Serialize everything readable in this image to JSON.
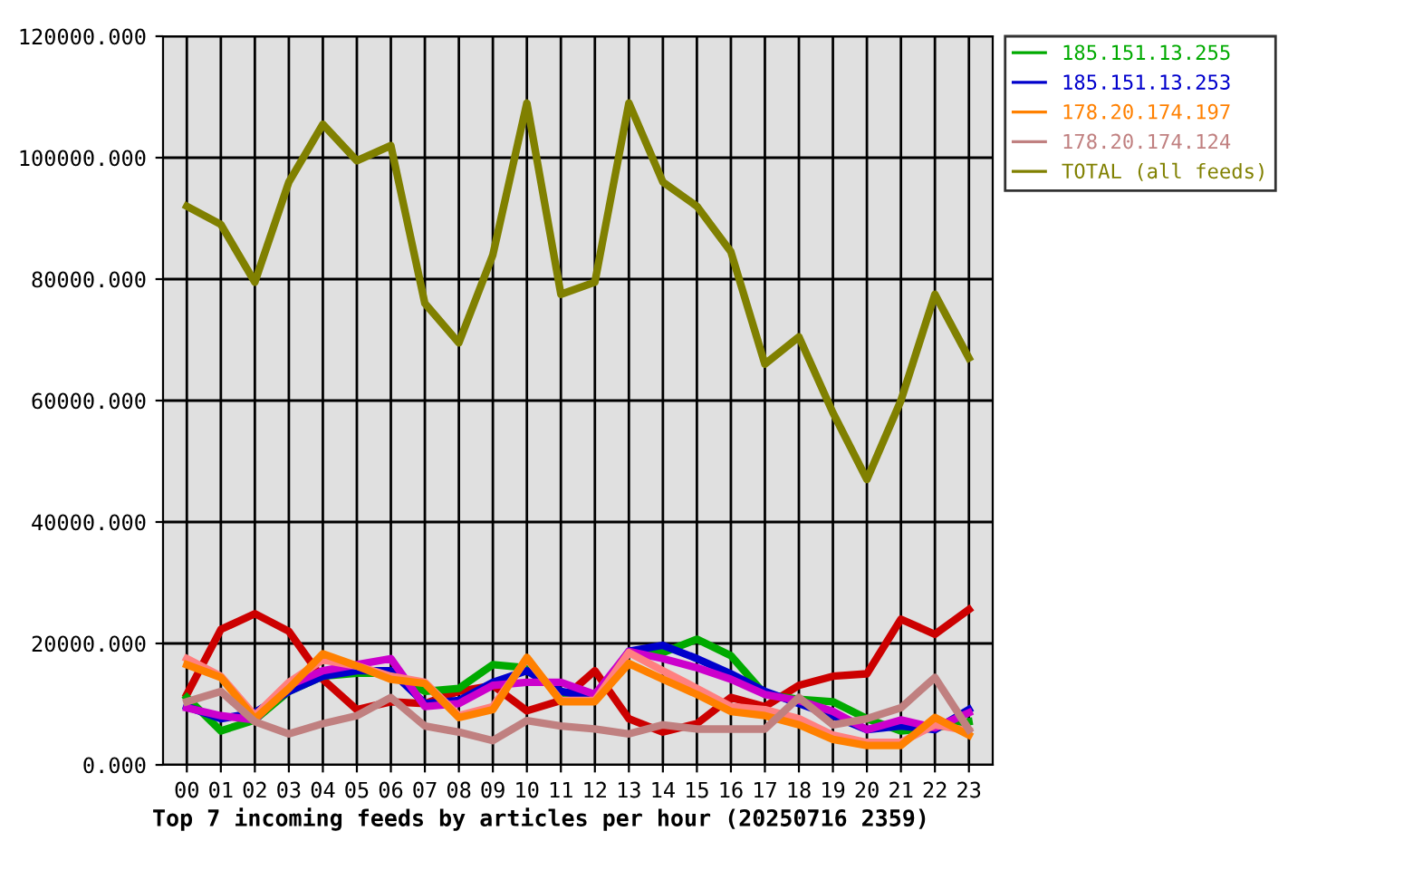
{
  "chart_data": {
    "type": "line",
    "title": "Top 7 incoming feeds by articles per hour (20250716 2359)",
    "categories": [
      "00",
      "01",
      "02",
      "03",
      "04",
      "05",
      "06",
      "07",
      "08",
      "09",
      "10",
      "11",
      "12",
      "13",
      "14",
      "15",
      "16",
      "17",
      "18",
      "19",
      "20",
      "21",
      "22",
      "23"
    ],
    "series": [
      {
        "color": "#cc0000",
        "values": [
          11600,
          22300,
          24900,
          22000,
          14100,
          9100,
          10400,
          10100,
          12100,
          13100,
          8900,
          10600,
          15500,
          7600,
          5400,
          6800,
          11100,
          9600,
          13100,
          14600,
          15000,
          24000,
          21500,
          25600
        ]
      },
      {
        "name": "185.151.13.255",
        "color": "#00aa00",
        "values": [
          11100,
          5600,
          7400,
          12100,
          14600,
          15100,
          15100,
          12100,
          12600,
          16500,
          16000,
          11600,
          11100,
          18500,
          18500,
          20700,
          18000,
          11600,
          10800,
          10400,
          7600,
          5600,
          6100,
          7100
        ]
      },
      {
        "name": "185.151.13.253",
        "color": "#0000cc",
        "values": [
          9600,
          7600,
          8600,
          12100,
          14600,
          15500,
          15500,
          10100,
          10600,
          13600,
          15500,
          12100,
          11100,
          18700,
          19700,
          17500,
          15000,
          12100,
          10100,
          8100,
          5800,
          6400,
          5800,
          9100
        ]
      },
      {
        "color": "#cc00cc",
        "values": [
          9400,
          8100,
          7400,
          13100,
          15500,
          16500,
          17500,
          9600,
          10100,
          13100,
          13600,
          13600,
          11600,
          18700,
          17500,
          16000,
          14100,
          11600,
          10600,
          8800,
          5800,
          7400,
          6100,
          8600
        ]
      },
      {
        "color": "#ff8080",
        "values": [
          17500,
          14600,
          8100,
          13600,
          17300,
          16300,
          14600,
          13600,
          8100,
          9600,
          17500,
          10600,
          10600,
          18500,
          15500,
          12600,
          9600,
          9100,
          7600,
          4900,
          3700,
          3700,
          6600,
          5600
        ]
      },
      {
        "name": "178.20.174.197",
        "color": "#ff8000",
        "values": [
          16500,
          14400,
          7600,
          12600,
          18300,
          16300,
          14100,
          13400,
          7800,
          9100,
          17700,
          10400,
          10400,
          16700,
          14100,
          11600,
          8800,
          8100,
          6600,
          4200,
          3200,
          3200,
          7800,
          4900
        ]
      },
      {
        "name": "178.20.174.124",
        "color": "#c08080",
        "values": [
          10400,
          12100,
          7100,
          5100,
          6800,
          8100,
          11100,
          6400,
          5400,
          4000,
          7300,
          6400,
          5900,
          5100,
          6600,
          5900,
          5900,
          5900,
          11100,
          6600,
          7600,
          9400,
          14400,
          5800
        ]
      },
      {
        "name": "TOTAL (all feeds)",
        "color": "#808000",
        "values": [
          92000,
          89000,
          79500,
          96000,
          105500,
          99500,
          102000,
          76000,
          69500,
          84000,
          109000,
          77500,
          79500,
          109000,
          96000,
          92000,
          84500,
          66000,
          70500,
          58000,
          47000,
          60000,
          77500,
          67000
        ]
      }
    ],
    "ylim": [
      0,
      120000
    ],
    "yticks": [
      {
        "value": 0,
        "label": "0.000"
      },
      {
        "value": 20000,
        "label": "20000.000"
      },
      {
        "value": 40000,
        "label": "40000.000"
      },
      {
        "value": 60000,
        "label": "60000.000"
      },
      {
        "value": 80000,
        "label": "80000.000"
      },
      {
        "value": 100000,
        "label": "100000.000"
      },
      {
        "value": 120000,
        "label": "120000.000"
      }
    ],
    "grid": true,
    "legend": "right",
    "line_style": "solid"
  }
}
